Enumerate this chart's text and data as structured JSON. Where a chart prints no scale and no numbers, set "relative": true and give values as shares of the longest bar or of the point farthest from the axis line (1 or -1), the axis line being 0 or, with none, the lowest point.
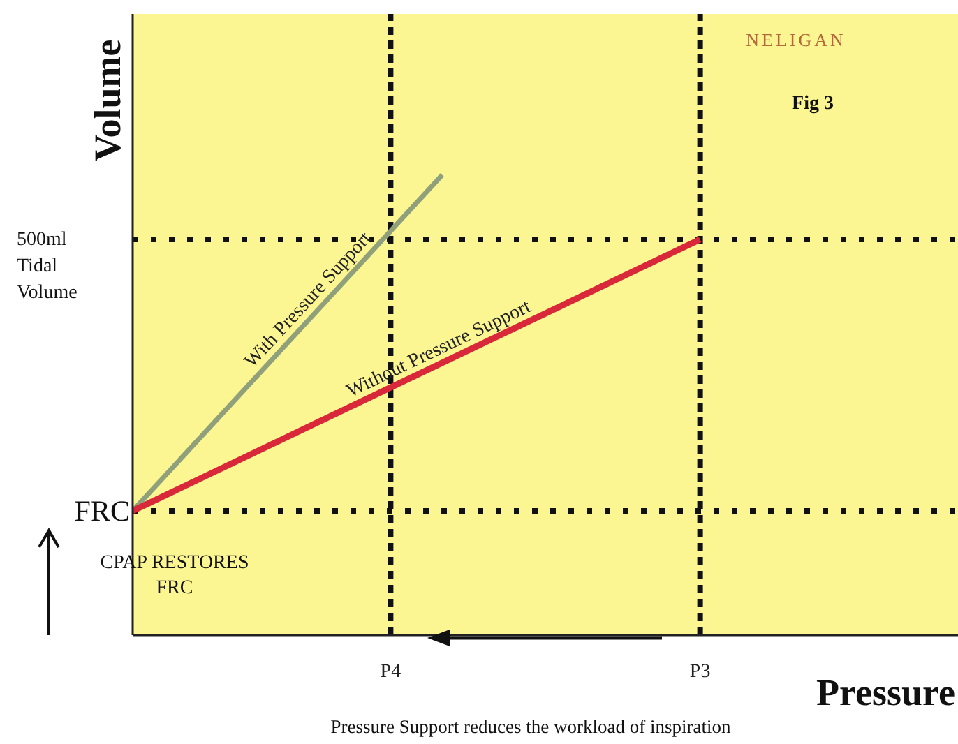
{
  "chart_data": {
    "type": "line",
    "relative": true,
    "xlabel": "Pressure",
    "ylabel": "Volume",
    "marker": "none",
    "categories": [
      null,
      null,
      null,
      null,
      null,
      "P4",
      null,
      null,
      null,
      null,
      null,
      "P3",
      null,
      null,
      null,
      null,
      null
    ],
    "series": [
      {
        "name": "With Pressure Support",
        "color": "#8fa07a",
        "values": [
          0.27,
          null,
          null,
          null,
          null,
          null,
          1,
          null,
          null,
          null,
          null,
          null,
          null,
          null,
          null,
          null,
          null
        ]
      },
      {
        "name": "Without Pressure Support",
        "color": "#d8283a",
        "values": [
          0.27,
          null,
          null,
          null,
          null,
          null,
          null,
          null,
          null,
          null,
          null,
          0.86,
          null,
          null,
          null,
          null,
          null
        ]
      }
    ],
    "ref_lines": [
      {
        "axis": "y",
        "value": 0.86,
        "label": "500ml Tidal Volume",
        "line_style": "dotted"
      },
      {
        "axis": "y",
        "value": 0.27,
        "label": "FRC",
        "line_style": "dotted"
      },
      {
        "axis": "x",
        "value": "P4",
        "line_style": "dashed"
      },
      {
        "axis": "x",
        "value": "P3",
        "line_style": "dashed"
      }
    ],
    "annotations": [
      "NELIGAN",
      "Fig 3",
      "CPAP RESTORES FRC",
      "Pressure Support reduces the workload of inspiration"
    ]
  }
}
